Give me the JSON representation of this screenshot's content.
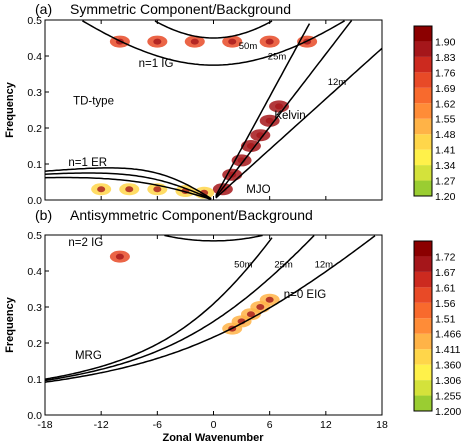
{
  "chart_data": [
    {
      "type": "heatmap",
      "panel_label": "(a)",
      "title": "Symmetric Component/Background",
      "xlabel": "Zonal Wavenumber",
      "ylabel": "Frequency",
      "xlim": [
        -18,
        18
      ],
      "ylim": [
        0,
        0.5
      ],
      "x_ticks": [
        "-18",
        "-12",
        "-6",
        "0",
        "6",
        "12",
        "18"
      ],
      "y_ticks": [
        "0.0",
        "0.1",
        "0.2",
        "0.3",
        "0.4",
        "0.5"
      ],
      "colorbar": {
        "ticks": [
          "1.20",
          "1.27",
          "1.34",
          "1.41",
          "1.48",
          "1.55",
          "1.62",
          "1.69",
          "1.76",
          "1.83",
          "1.90"
        ],
        "colors": [
          "#9acd32",
          "#d4e23b",
          "#fff14a",
          "#ffd64a",
          "#ffb347",
          "#ff8c37",
          "#f86a2d",
          "#e84a27",
          "#cc2a1f",
          "#a5161a",
          "#8b0000"
        ]
      },
      "annotations": [
        "n=1 IG",
        "50m",
        "25m",
        "12m",
        "TD-type",
        "Kelvin",
        "n=1 ER",
        "MJO"
      ],
      "features": [
        {
          "name": "MJO / Kelvin band",
          "x": [
            1,
            2,
            3,
            4,
            5,
            6,
            7
          ],
          "y": [
            0.03,
            0.07,
            0.11,
            0.15,
            0.18,
            0.22,
            0.26
          ],
          "level": 1.85
        },
        {
          "name": "Rossby/TD band",
          "x": [
            -12,
            -9,
            -6,
            -3,
            -1
          ],
          "y": [
            0.03,
            0.03,
            0.03,
            0.025,
            0.02
          ],
          "level": 1.45
        },
        {
          "name": "Diurnal band",
          "x": [
            -10,
            -6,
            -2,
            2,
            6,
            10
          ],
          "y": [
            0.44,
            0.44,
            0.44,
            0.44,
            0.44,
            0.44
          ],
          "level": 1.75
        }
      ]
    },
    {
      "type": "heatmap",
      "panel_label": "(b)",
      "title": "Antisymmetric Component/Background",
      "xlabel": "Zonal Wavenumber",
      "ylabel": "Frequency",
      "xlim": [
        -18,
        18
      ],
      "ylim": [
        0,
        0.5
      ],
      "x_ticks": [
        "-18",
        "-12",
        "-6",
        "0",
        "6",
        "12",
        "18"
      ],
      "y_ticks": [
        "0.0",
        "0.1",
        "0.2",
        "0.3",
        "0.4",
        "0.5"
      ],
      "colorbar": {
        "ticks": [
          "1.200",
          "1.255",
          "1.306",
          "1.360",
          "1.411",
          "1.466",
          "1.51",
          "1.56",
          "1.61",
          "1.67",
          "1.72"
        ],
        "colors": [
          "#9acd32",
          "#d4e23b",
          "#fff14a",
          "#ffd64a",
          "#ffb347",
          "#ff8c37",
          "#f86a2d",
          "#e84a27",
          "#cc2a1f",
          "#a5161a",
          "#8b0000"
        ]
      },
      "annotations": [
        "n=2 IG",
        "50m",
        "25m",
        "12m",
        "n=0 EIG",
        "MRG"
      ],
      "features": [
        {
          "name": "EIG band",
          "x": [
            2,
            3,
            4,
            5,
            6
          ],
          "y": [
            0.24,
            0.26,
            0.28,
            0.3,
            0.32
          ],
          "level": 1.46
        },
        {
          "name": "n=2 IG spot",
          "x": [
            -10
          ],
          "y": [
            0.44
          ],
          "level": 1.6
        }
      ]
    }
  ]
}
